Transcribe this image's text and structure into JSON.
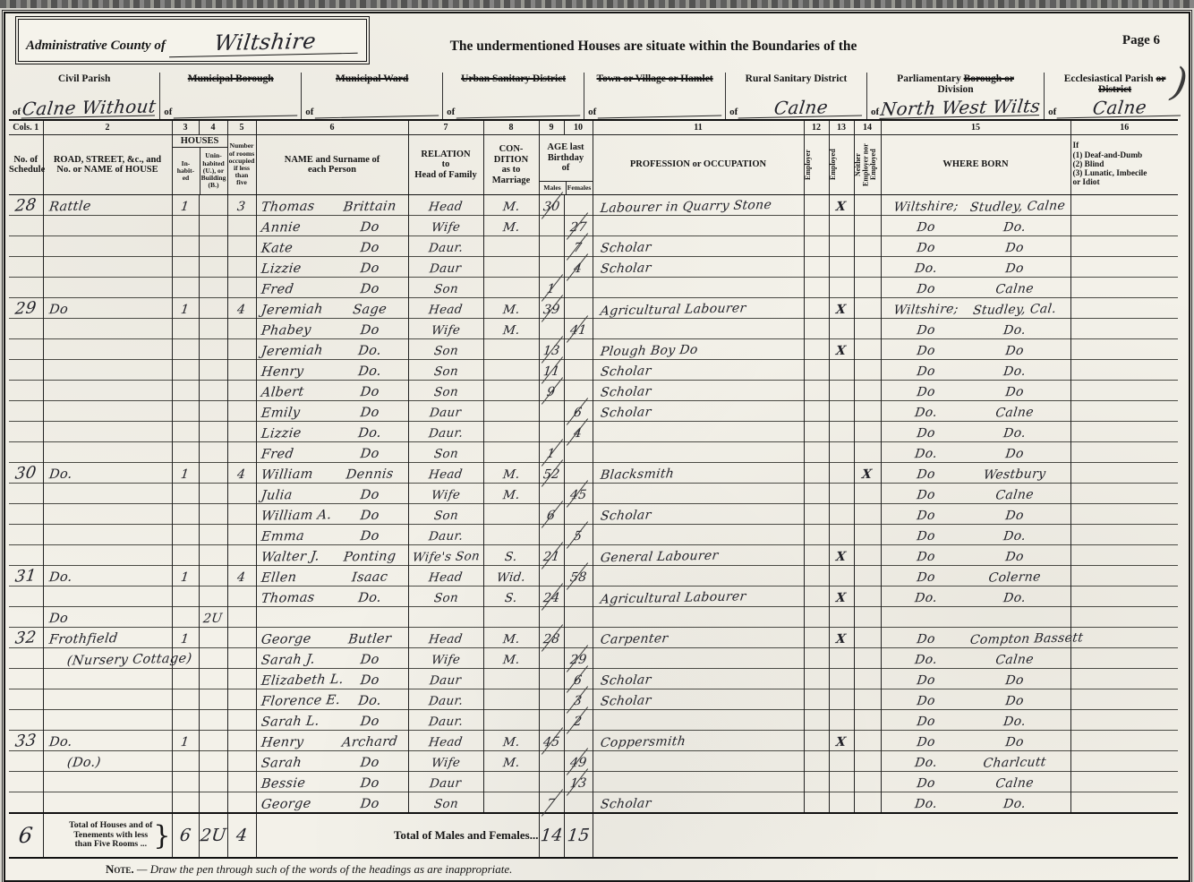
{
  "page": {
    "page_label": "Page 6",
    "note_word": "Note.",
    "note": "— Draw the pen through such of the words of the headings as are inappropriate.",
    "ink_mark": ")"
  },
  "header": {
    "admin_county_label": "Administrative County of",
    "admin_county_value": "Wiltshire",
    "situate_text": "The undermentioned Houses are situate within the Boundaries of the",
    "districts": [
      {
        "name": "civil-parish",
        "l1": [
          {
            "t": "Civil Parish",
            "s": false
          }
        ],
        "l2": [],
        "value": "Calne Without",
        "big": true
      },
      {
        "name": "municipal-borough",
        "l1": [
          {
            "t": "Municipal Borough",
            "s": true
          }
        ],
        "l2": [],
        "value": "",
        "big": false
      },
      {
        "name": "municipal-ward",
        "l1": [
          {
            "t": "Municipal Ward",
            "s": true
          }
        ],
        "l2": [],
        "value": "",
        "big": false
      },
      {
        "name": "urban-sanitary-district",
        "l1": [
          {
            "t": "Urban Sanitary District",
            "s": true
          }
        ],
        "l2": [],
        "value": "",
        "big": false
      },
      {
        "name": "town-village-hamlet",
        "l1": [
          {
            "t": "Town or Village or Hamlet",
            "s": true
          }
        ],
        "l2": [],
        "value": "",
        "big": false
      },
      {
        "name": "rural-sanitary-district",
        "l1": [
          {
            "t": "Rural Sanitary District",
            "s": false
          }
        ],
        "l2": [],
        "value": "Calne",
        "big": true
      },
      {
        "name": "parliamentary-division",
        "l1": [
          {
            "t": "Parliamentary ",
            "s": false
          },
          {
            "t": "Borough or",
            "s": true
          }
        ],
        "l2": [
          {
            "t": "Division",
            "s": false
          }
        ],
        "value": "North West Wilts",
        "big": true
      },
      {
        "name": "ecclesiastical-parish",
        "l1": [
          {
            "t": "Ecclesiastical Parish ",
            "s": false
          },
          {
            "t": "or",
            "s": true
          }
        ],
        "l2": [
          {
            "t": "District",
            "s": true
          }
        ],
        "value": "Calne",
        "big": true
      }
    ]
  },
  "table": {
    "nums": {
      "n1": "Cols. 1",
      "n2": "2",
      "n3": "3",
      "n4": "4",
      "n5": "5",
      "n6": "6",
      "n7": "7",
      "n8": "8",
      "n9": "9",
      "n10": "10",
      "n11": "11",
      "n12": "12",
      "n13": "13",
      "n14": "14",
      "n15": "15",
      "n16": "16"
    },
    "heads": {
      "schedule": "No. of\nSchedule",
      "road": "ROAD, STREET, &c., and\nNo. or NAME of HOUSE",
      "houses": "HOUSES",
      "inhabited": "In-\nhabit-\ned",
      "uninhabited": "Unin-\nhabited\n(U.), or\nBuilding\n(B.)",
      "rooms": "Number\nof rooms\noccupied\nif less\nthan\nfive",
      "name": "NAME and Surname of\neach Person",
      "relation": "RELATION\nto\nHead of Family",
      "condition": "CON-\nDITION\nas to\nMarriage",
      "age": "AGE last\nBirthday\nof",
      "males": "Males",
      "females": "Females",
      "occupation": "PROFESSION or OCCUPATION",
      "employer": "Employer",
      "employed": "Employed",
      "neither": "Neither Employer nor Employed",
      "born": "WHERE BORN",
      "infirm": "If\n(1) Deaf-and-Dumb\n(2) Blind\n(3) Lunatic, Imbecile\nor Idiot"
    }
  },
  "rows": [
    {
      "sched": "28",
      "road": "Rattle",
      "inh": "1",
      "rooms": "3",
      "first": "Thomas",
      "last": "Brittain",
      "rel": "Head",
      "cond": "M.",
      "am": "30",
      "occ": "Labourer in Quarry Stone",
      "empd": "X",
      "born1": "Wiltshire;",
      "born2": "Studley, Calne"
    },
    {
      "first": "Annie",
      "last": "Do",
      "rel": "Wife",
      "cond": "M.",
      "af": "27",
      "born1": "Do",
      "born2": "Do."
    },
    {
      "first": "Kate",
      "last": "Do",
      "rel": "Daur.",
      "af": "7",
      "occ": "Scholar",
      "born1": "Do",
      "born2": "Do"
    },
    {
      "first": "Lizzie",
      "last": "Do",
      "rel": "Daur",
      "af": "4",
      "occ": "Scholar",
      "born1": "Do.",
      "born2": "Do"
    },
    {
      "first": "Fred",
      "last": "Do",
      "rel": "Son",
      "am": "1",
      "born1": "Do",
      "born2": "Calne"
    },
    {
      "sched": "29",
      "road": "Do",
      "inh": "1",
      "rooms": "4",
      "first": "Jeremiah",
      "last": "Sage",
      "rel": "Head",
      "cond": "M.",
      "am": "39",
      "occ": "Agricultural Labourer",
      "empd": "X",
      "born1": "Wiltshire;",
      "born2": "Studley, Cal."
    },
    {
      "first": "Phabey",
      "last": "Do",
      "rel": "Wife",
      "cond": "M.",
      "af": "41",
      "born1": "Do",
      "born2": "Do."
    },
    {
      "first": "Jeremiah",
      "last": "Do.",
      "rel": "Son",
      "am": "13",
      "occ": "Plough Boy Do",
      "empd": "X",
      "born1": "Do",
      "born2": "Do"
    },
    {
      "first": "Henry",
      "last": "Do.",
      "rel": "Son",
      "am": "11",
      "occ": "Scholar",
      "born1": "Do",
      "born2": "Do."
    },
    {
      "first": "Albert",
      "last": "Do",
      "rel": "Son",
      "am": "9",
      "occ": "Scholar",
      "born1": "Do",
      "born2": "Do"
    },
    {
      "first": "Emily",
      "last": "Do",
      "rel": "Daur",
      "af": "6",
      "occ": "Scholar",
      "born1": "Do.",
      "born2": "Calne"
    },
    {
      "first": "Lizzie",
      "last": "Do.",
      "rel": "Daur.",
      "af": "4",
      "born1": "Do",
      "born2": "Do."
    },
    {
      "first": "Fred",
      "last": "Do",
      "rel": "Son",
      "am": "1",
      "born1": "Do.",
      "born2": "Do"
    },
    {
      "sched": "30",
      "road": "Do.",
      "inh": "1",
      "rooms": "4",
      "first": "William",
      "last": "Dennis",
      "rel": "Head",
      "cond": "M.",
      "am": "52",
      "occ": "Blacksmith",
      "nei": "X",
      "born1": "Do",
      "born2": "Westbury"
    },
    {
      "first": "Julia",
      "last": "Do",
      "rel": "Wife",
      "cond": "M.",
      "af": "45",
      "born1": "Do",
      "born2": "Calne"
    },
    {
      "first": "William A.",
      "last": "Do",
      "rel": "Son",
      "am": "6",
      "occ": "Scholar",
      "born1": "Do",
      "born2": "Do"
    },
    {
      "first": "Emma",
      "last": "Do",
      "rel": "Daur.",
      "af": "5",
      "born1": "Do",
      "born2": "Do."
    },
    {
      "first": "Walter J.",
      "last": "Ponting",
      "rel": "Wife's Son",
      "cond": "S.",
      "am": "21",
      "occ": "General Labourer",
      "empd": "X",
      "born1": "Do",
      "born2": "Do"
    },
    {
      "sched": "31",
      "road": "Do.",
      "inh": "1",
      "rooms": "4",
      "first": "Ellen",
      "last": "Isaac",
      "rel": "Head",
      "cond": "Wid.",
      "af": "58",
      "born1": "Do",
      "born2": "Colerne"
    },
    {
      "first": "Thomas",
      "last": "Do.",
      "rel": "Son",
      "cond": "S.",
      "am": "24",
      "occ": "Agricultural Labourer",
      "empd": "X",
      "born1": "Do.",
      "born2": "Do."
    },
    {
      "road": "Do",
      "uninh": "2U"
    },
    {
      "sched": "32",
      "road": "Frothfield",
      "inh": "1",
      "first": "George",
      "last": "Butler",
      "rel": "Head",
      "cond": "M.",
      "am": "28",
      "occ": "Carpenter",
      "empd": "X",
      "born1": "Do",
      "born2": "Compton Bassett"
    },
    {
      "road": "(Nursery Cottage)",
      "roadSub": true,
      "first": "Sarah J.",
      "last": "Do",
      "rel": "Wife",
      "cond": "M.",
      "af": "29",
      "born1": "Do.",
      "born2": "Calne"
    },
    {
      "first": "Elizabeth L.",
      "last": "Do",
      "rel": "Daur",
      "af": "6",
      "occ": "Scholar",
      "born1": "Do",
      "born2": "Do"
    },
    {
      "first": "Florence E.",
      "last": "Do.",
      "rel": "Daur.",
      "af": "3",
      "occ": "Scholar",
      "born1": "Do",
      "born2": "Do"
    },
    {
      "first": "Sarah L.",
      "last": "Do",
      "rel": "Daur.",
      "af": "2",
      "born1": "Do",
      "born2": "Do."
    },
    {
      "sched": "33",
      "road": "Do.",
      "inh": "1",
      "first": "Henry",
      "last": "Archard",
      "rel": "Head",
      "cond": "M.",
      "am": "45",
      "occ": "Coppersmith",
      "empd": "X",
      "born1": "Do",
      "born2": "Do"
    },
    {
      "road": "(Do.)",
      "roadSub": true,
      "first": "Sarah",
      "last": "Do",
      "rel": "Wife",
      "cond": "M.",
      "af": "49",
      "born1": "Do.",
      "born2": "Charlcutt"
    },
    {
      "first": "Bessie",
      "last": "Do",
      "rel": "Daur",
      "af": "13",
      "born1": "Do",
      "born2": "Calne"
    },
    {
      "first": "George",
      "last": "Do",
      "rel": "Son",
      "am": "7",
      "occ": "Scholar",
      "born1": "Do.",
      "born2": "Do."
    }
  ],
  "totals": {
    "schedule_total": "6",
    "houses_label": "Total of Houses and of\nTenements with less\nthan Five Rooms  ...",
    "brace": "}",
    "inhabited": "6",
    "uninhabited": "2U",
    "rooms": "4",
    "males_females_label": "Total of Males and Females...",
    "males": "14",
    "females": "15"
  }
}
